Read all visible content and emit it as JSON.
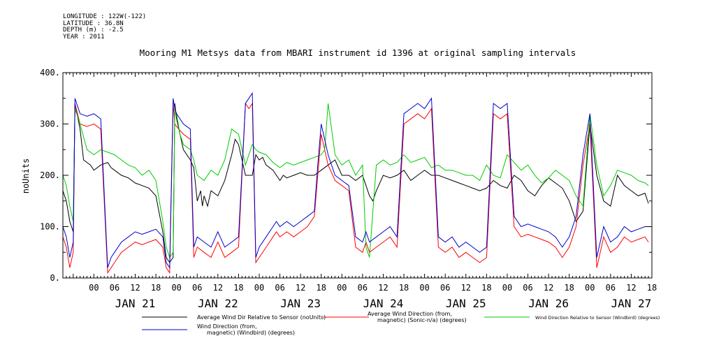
{
  "meta": {
    "longitude": "LONGITUDE : 122W(-122)",
    "latitude": "LATITUDE : 36.8N",
    "depth": "DEPTH (m) : -2.5",
    "year": "YEAR : 2011"
  },
  "chart_data": {
    "type": "line",
    "title": "Mooring M1 Metsys data from MBARI instrument id 1396 at original sampling intervals",
    "ylabel": "noUnits",
    "xlabel": "",
    "ylim": [
      0,
      400
    ],
    "yticks": [
      "0.",
      "100.",
      "200.",
      "300.",
      "400."
    ],
    "xlim_hours": [
      -9,
      162
    ],
    "xticks": [
      "00",
      "06",
      "12",
      "18",
      "00",
      "06",
      "12",
      "18",
      "00",
      "06",
      "12",
      "18",
      "00",
      "06",
      "12",
      "18",
      "00",
      "06",
      "12",
      "18",
      "00",
      "06",
      "12",
      "18",
      "00",
      "06",
      "12",
      "18"
    ],
    "day_labels": [
      "JAN 21",
      "JAN 22",
      "JAN 23",
      "JAN 24",
      "JAN 25",
      "JAN 26",
      "JAN 27"
    ],
    "grid": false,
    "legend_position": "bottom",
    "series": [
      {
        "name": "Average Wind Dir Relative to Sensor (noUnits)",
        "color": "#000000",
        "x": [
          -9,
          -8,
          -7,
          -6,
          -5.5,
          -4,
          -3,
          -1,
          0,
          2,
          4,
          5,
          6,
          8,
          10,
          12,
          14,
          16,
          18,
          20,
          21,
          22,
          23,
          23.5,
          24,
          25,
          26,
          28,
          29,
          30,
          31,
          31.5,
          32,
          33,
          34,
          36,
          38,
          40,
          41,
          42,
          44,
          46,
          47,
          48,
          49,
          50,
          52,
          54,
          55,
          56,
          58,
          60,
          62,
          64,
          66,
          68,
          70,
          72,
          74,
          76,
          78,
          79,
          80,
          81,
          82,
          84,
          86,
          88,
          90,
          92,
          94,
          96,
          97,
          98,
          100,
          102,
          104,
          106,
          108,
          110,
          112,
          114,
          116,
          118,
          120,
          122,
          124,
          126,
          128,
          130,
          132,
          134,
          136,
          138,
          140,
          142,
          144,
          146,
          148,
          150,
          152,
          154,
          156,
          158,
          160,
          161
        ],
        "y": [
          170,
          150,
          110,
          90,
          340,
          290,
          230,
          220,
          210,
          220,
          225,
          215,
          210,
          200,
          195,
          185,
          180,
          175,
          160,
          90,
          40,
          30,
          40,
          340,
          310,
          280,
          250,
          230,
          215,
          150,
          170,
          140,
          160,
          140,
          170,
          160,
          190,
          240,
          270,
          260,
          200,
          200,
          240,
          230,
          235,
          220,
          210,
          190,
          200,
          195,
          200,
          205,
          200,
          200,
          210,
          220,
          230,
          200,
          200,
          190,
          200,
          180,
          160,
          150,
          170,
          200,
          195,
          200,
          210,
          190,
          200,
          210,
          205,
          200,
          200,
          195,
          190,
          185,
          180,
          175,
          170,
          175,
          190,
          180,
          175,
          200,
          190,
          170,
          160,
          180,
          195,
          185,
          175,
          150,
          110,
          130,
          300,
          200,
          150,
          140,
          200,
          180,
          170,
          160,
          165,
          145
        ]
      },
      {
        "name": "Average Wind Direction (from, magnetic) (Sonic-n/a) (degrees)",
        "color": "#ff0000",
        "x": [
          -9,
          -8,
          -7,
          -6,
          -5.5,
          -4,
          -2,
          0,
          2,
          4,
          5,
          6,
          8,
          10,
          12,
          14,
          16,
          18,
          20,
          21,
          22,
          23,
          23.5,
          24,
          26,
          28,
          29,
          30,
          32,
          34,
          36,
          38,
          40,
          42,
          44,
          45,
          46,
          47,
          48,
          50,
          52,
          53,
          54,
          56,
          58,
          60,
          62,
          64,
          65,
          66,
          68,
          70,
          72,
          74,
          76,
          78,
          79,
          80,
          82,
          84,
          86,
          88,
          90,
          92,
          94,
          96,
          98,
          100,
          102,
          104,
          106,
          108,
          110,
          112,
          114,
          116,
          118,
          120,
          122,
          124,
          126,
          128,
          130,
          132,
          134,
          136,
          138,
          140,
          142,
          144,
          146,
          148,
          150,
          152,
          154,
          156,
          158,
          160,
          161
        ],
        "y": [
          80,
          60,
          20,
          50,
          340,
          300,
          295,
          300,
          290,
          10,
          20,
          30,
          50,
          60,
          70,
          65,
          70,
          75,
          60,
          20,
          10,
          340,
          300,
          295,
          280,
          270,
          40,
          60,
          50,
          40,
          70,
          40,
          50,
          60,
          340,
          330,
          340,
          30,
          40,
          60,
          80,
          90,
          80,
          90,
          80,
          90,
          100,
          120,
          200,
          280,
          220,
          190,
          180,
          170,
          60,
          50,
          70,
          50,
          60,
          70,
          80,
          60,
          300,
          310,
          320,
          310,
          330,
          60,
          50,
          60,
          40,
          50,
          40,
          30,
          40,
          320,
          310,
          320,
          100,
          80,
          85,
          80,
          75,
          70,
          60,
          40,
          60,
          100,
          220,
          300,
          20,
          80,
          50,
          60,
          80,
          70,
          75,
          80,
          70
        ]
      },
      {
        "name": "Wind Direction Relative to Sensor (Windbird) (degrees)",
        "color": "#00cc00",
        "x": [
          -9,
          -8,
          -7,
          -6,
          -5.5,
          -4,
          -2,
          0,
          2,
          4,
          6,
          8,
          10,
          12,
          14,
          16,
          18,
          20,
          21,
          22,
          23,
          23.5,
          24,
          25,
          26,
          28,
          29,
          30,
          32,
          34,
          36,
          38,
          40,
          42,
          44,
          46,
          47,
          48,
          50,
          52,
          54,
          56,
          58,
          60,
          62,
          64,
          66,
          67,
          68,
          70,
          72,
          74,
          76,
          78,
          79,
          80,
          82,
          84,
          86,
          88,
          90,
          92,
          94,
          96,
          98,
          100,
          102,
          104,
          106,
          108,
          110,
          112,
          114,
          116,
          118,
          120,
          122,
          124,
          126,
          128,
          130,
          132,
          134,
          136,
          138,
          140,
          142,
          144,
          146,
          148,
          150,
          152,
          154,
          156,
          158,
          160,
          161
        ],
        "y": [
          200,
          180,
          140,
          110,
          330,
          300,
          250,
          240,
          250,
          245,
          240,
          230,
          220,
          215,
          200,
          210,
          190,
          110,
          60,
          40,
          50,
          330,
          320,
          280,
          260,
          250,
          230,
          200,
          190,
          210,
          200,
          230,
          290,
          280,
          220,
          260,
          250,
          245,
          240,
          225,
          215,
          225,
          220,
          225,
          230,
          235,
          240,
          250,
          340,
          240,
          220,
          230,
          200,
          220,
          60,
          40,
          220,
          230,
          220,
          225,
          240,
          225,
          230,
          235,
          215,
          220,
          210,
          210,
          205,
          200,
          200,
          190,
          220,
          200,
          195,
          240,
          225,
          210,
          220,
          200,
          185,
          195,
          210,
          200,
          190,
          160,
          140,
          320,
          220,
          160,
          180,
          210,
          205,
          200,
          190,
          185,
          180
        ]
      },
      {
        "name": "Wind Direction (from, magnetic) (Windbird) (degrees)",
        "color": "#0000cc",
        "x": [
          -9,
          -8,
          -7,
          -6,
          -5.5,
          -4,
          -2,
          0,
          2,
          4,
          5,
          6,
          8,
          10,
          12,
          14,
          16,
          18,
          20,
          21,
          22,
          23,
          23.5,
          24,
          26,
          28,
          29,
          30,
          32,
          34,
          36,
          38,
          40,
          42,
          44,
          45,
          46,
          47,
          48,
          50,
          52,
          53,
          54,
          56,
          58,
          60,
          62,
          64,
          65,
          66,
          68,
          70,
          72,
          74,
          76,
          78,
          79,
          80,
          82,
          84,
          86,
          88,
          90,
          92,
          94,
          96,
          98,
          100,
          102,
          104,
          106,
          108,
          110,
          112,
          114,
          116,
          118,
          120,
          122,
          124,
          126,
          128,
          130,
          132,
          134,
          136,
          138,
          140,
          142,
          144,
          146,
          148,
          150,
          152,
          154,
          156,
          158,
          160,
          161
        ],
        "y": [
          100,
          80,
          40,
          70,
          350,
          320,
          315,
          320,
          310,
          20,
          40,
          50,
          70,
          80,
          90,
          85,
          90,
          95,
          80,
          30,
          20,
          350,
          330,
          320,
          300,
          290,
          60,
          80,
          70,
          60,
          90,
          60,
          70,
          80,
          340,
          350,
          360,
          40,
          60,
          80,
          100,
          110,
          100,
          110,
          100,
          110,
          120,
          130,
          220,
          300,
          240,
          200,
          190,
          180,
          80,
          70,
          90,
          70,
          80,
          90,
          100,
          80,
          320,
          330,
          340,
          330,
          350,
          80,
          70,
          80,
          60,
          70,
          60,
          50,
          60,
          340,
          330,
          340,
          120,
          100,
          105,
          100,
          95,
          90,
          80,
          60,
          80,
          120,
          240,
          320,
          40,
          100,
          70,
          80,
          100,
          90,
          95,
          100,
          100
        ]
      }
    ]
  }
}
